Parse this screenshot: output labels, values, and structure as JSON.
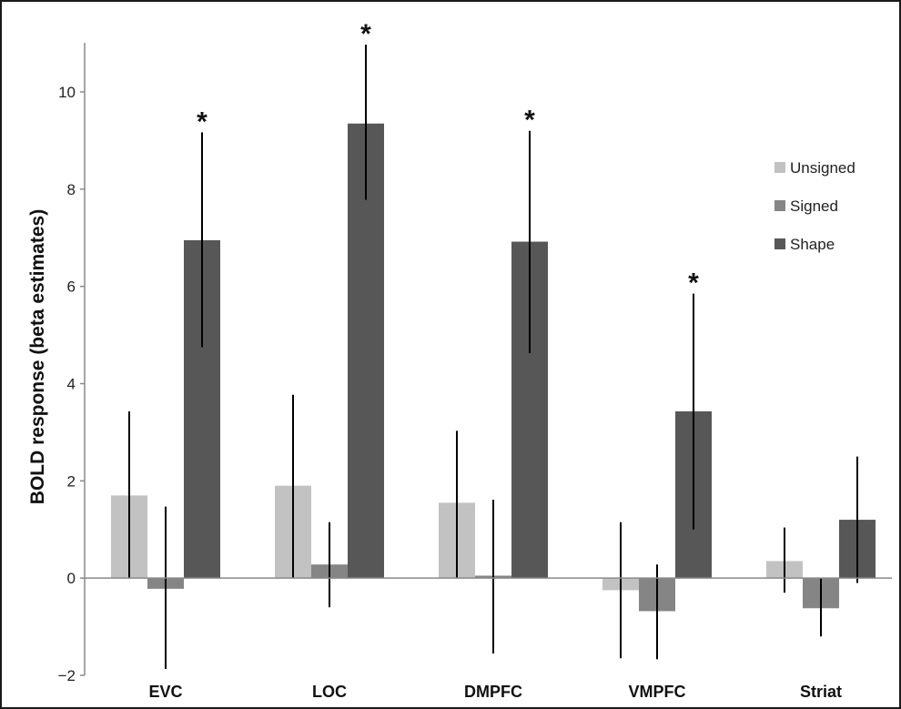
{
  "chart_data": {
    "type": "bar",
    "title": "",
    "ylabel": "BOLD response (beta estimates)",
    "xlabel": "",
    "ylim": [
      -2,
      11
    ],
    "yticks": [
      -2,
      0,
      2,
      4,
      6,
      8,
      10
    ],
    "ytick_labels": [
      "−2",
      "0",
      "2",
      "4",
      "6",
      "8",
      "10"
    ],
    "grid": false,
    "legend_position": "right",
    "categories": [
      "EVC",
      "LOC",
      "DMPFC",
      "VMPFC",
      "Striat"
    ],
    "series": [
      {
        "name": "Unsigned",
        "color": "#c2c2c2",
        "values": [
          1.7,
          1.9,
          1.55,
          -0.25,
          0.35
        ],
        "error_low": [
          0.0,
          0.0,
          0.0,
          -1.65,
          -0.3
        ],
        "error_high": [
          3.43,
          3.77,
          3.03,
          1.15,
          1.04
        ]
      },
      {
        "name": "Signed",
        "color": "#858585",
        "values": [
          -0.22,
          0.28,
          0.05,
          -0.68,
          -0.62
        ],
        "error_low": [
          -1.87,
          -0.6,
          -1.55,
          -1.67,
          -1.2
        ],
        "error_high": [
          1.47,
          1.15,
          1.61,
          0.28,
          0.0
        ]
      },
      {
        "name": "Shape",
        "color": "#575757",
        "values": [
          6.95,
          9.35,
          6.92,
          3.43,
          1.2
        ],
        "error_low": [
          4.75,
          7.78,
          4.63,
          1.0,
          -0.1
        ],
        "error_high": [
          9.17,
          10.97,
          9.2,
          5.85,
          2.5
        ]
      }
    ],
    "annotations": [
      {
        "category": "EVC",
        "series": "Shape",
        "text": "*"
      },
      {
        "category": "LOC",
        "series": "Shape",
        "text": "*"
      },
      {
        "category": "DMPFC",
        "series": "Shape",
        "text": "*"
      },
      {
        "category": "VMPFC",
        "series": "Shape",
        "text": "*"
      }
    ]
  }
}
